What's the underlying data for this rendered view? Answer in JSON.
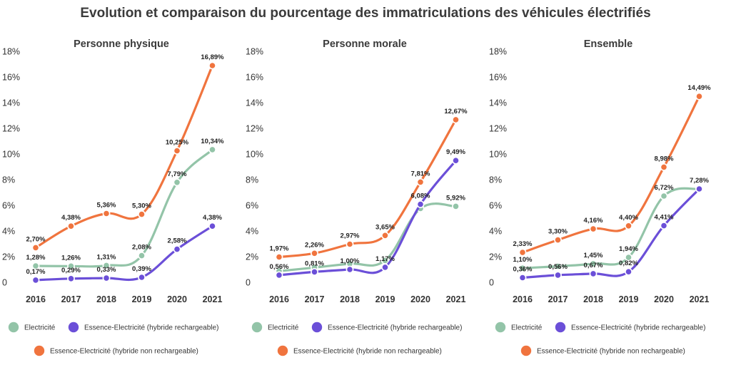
{
  "title": "Evolution et comparaison du pourcentage des immatriculations des véhicules électrifiés",
  "series_colors": {
    "electricite": "#93c4a8",
    "phev": "#6b4fd8",
    "hev": "#f0743e"
  },
  "legend": {
    "electricite": "Electricité",
    "phev": "Essence-Electricité (hybride rechargeable)",
    "hev": "Essence-Electricité (hybride non rechargeable)"
  },
  "chart_data": [
    {
      "type": "line",
      "title": "Personne physique",
      "categories": [
        "2016",
        "2017",
        "2018",
        "2019",
        "2020",
        "2021"
      ],
      "ylim": [
        0,
        18
      ],
      "yticks": [
        "0",
        "2%",
        "4%",
        "6%",
        "8%",
        "10%",
        "12%",
        "14%",
        "16%",
        "18%"
      ],
      "series": [
        {
          "key": "electricite",
          "name": "Electricité",
          "values": [
            1.28,
            1.26,
            1.31,
            2.08,
            7.79,
            10.34
          ],
          "labels": [
            "1,28%",
            "1,26%",
            "1,31%",
            "2,08%",
            "7,79%",
            "10,34%"
          ]
        },
        {
          "key": "phev",
          "name": "Essence-Electricité (hybride rechargeable)",
          "values": [
            0.17,
            0.29,
            0.33,
            0.39,
            2.58,
            4.38
          ],
          "labels": [
            "0,17%",
            "0,29%",
            "0,33%",
            "0,39%",
            "2,58%",
            "4,38%"
          ]
        },
        {
          "key": "hev",
          "name": "Essence-Electricité (hybride non rechargeable)",
          "values": [
            2.7,
            4.38,
            5.36,
            5.3,
            10.25,
            16.89
          ],
          "labels": [
            "2,70%",
            "4,38%",
            "5,36%",
            "5,30%",
            "10,25%",
            "16,89%"
          ]
        }
      ]
    },
    {
      "type": "line",
      "title": "Personne morale",
      "categories": [
        "2016",
        "2017",
        "2018",
        "2019",
        "2020",
        "2021"
      ],
      "ylim": [
        0,
        18
      ],
      "yticks": [
        "0",
        "2%",
        "4%",
        "6%",
        "8%",
        "10%",
        "12%",
        "14%",
        "16%",
        "18%"
      ],
      "series": [
        {
          "key": "electricite",
          "name": "Electricité",
          "values": [
            0.87,
            1.15,
            1.45,
            1.7,
            5.75,
            5.92
          ],
          "labels": [
            "",
            "",
            "",
            "",
            "",
            "5,92%"
          ]
        },
        {
          "key": "phev",
          "name": "Essence-Electricité (hybride rechargeable)",
          "values": [
            0.56,
            0.81,
            1.0,
            1.17,
            6.08,
            9.49
          ],
          "labels": [
            "0,56%",
            "0,81%",
            "1,00%",
            "1,17%",
            "6,08%",
            "9,49%"
          ]
        },
        {
          "key": "hev",
          "name": "Essence-Electricité (hybride non rechargeable)",
          "values": [
            1.97,
            2.26,
            2.97,
            3.65,
            7.81,
            12.67
          ],
          "labels": [
            "1,97%",
            "2,26%",
            "2,97%",
            "3,65%",
            "7,81%",
            "12,67%"
          ]
        }
      ]
    },
    {
      "type": "line",
      "title": "Ensemble",
      "categories": [
        "2016",
        "2017",
        "2018",
        "2019",
        "2020",
        "2021"
      ],
      "ylim": [
        0,
        18
      ],
      "yticks": [
        "0",
        "2%",
        "4%",
        "6%",
        "8%",
        "10%",
        "12%",
        "14%",
        "16%",
        "18%"
      ],
      "series": [
        {
          "key": "electricite",
          "name": "Electricité",
          "values": [
            1.1,
            1.25,
            1.45,
            1.94,
            6.72,
            7.28
          ],
          "labels": [
            "1,10%",
            "",
            "1,45%",
            "1,94%",
            "6,72%",
            "7,28%"
          ]
        },
        {
          "key": "phev",
          "name": "Essence-Electricité (hybride rechargeable)",
          "values": [
            0.36,
            0.56,
            0.67,
            0.82,
            4.41,
            7.28
          ],
          "labels": [
            "0,36%",
            "0,56%",
            "0,67%",
            "0,82%",
            "4,41%",
            ""
          ]
        },
        {
          "key": "hev",
          "name": "Essence-Electricité (hybride non rechargeable)",
          "values": [
            2.33,
            3.3,
            4.16,
            4.4,
            8.98,
            14.49
          ],
          "labels": [
            "2,33%",
            "3,30%",
            "4,16%",
            "4,40%",
            "8,98%",
            "14,49%"
          ]
        }
      ]
    }
  ]
}
